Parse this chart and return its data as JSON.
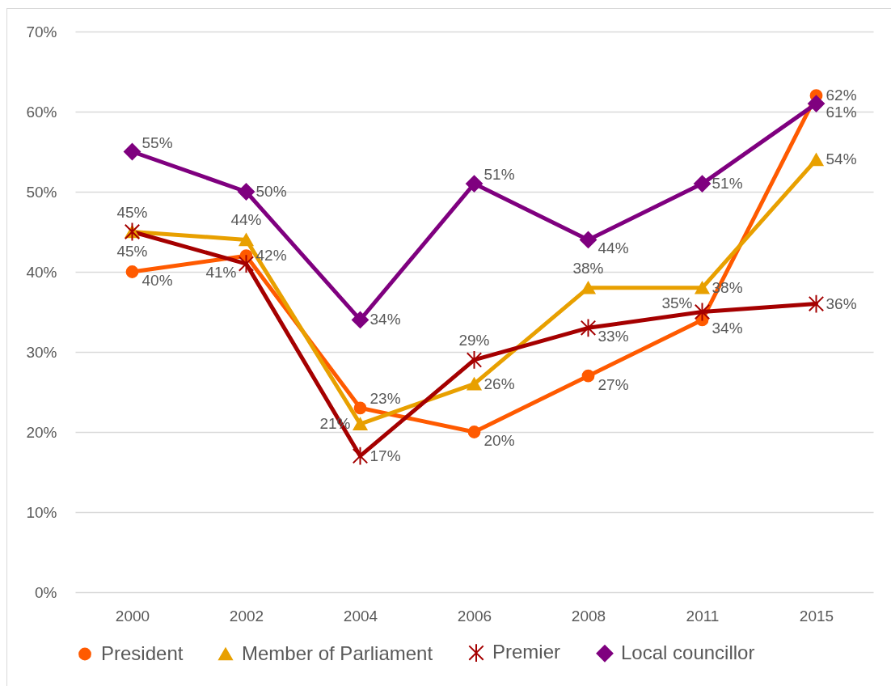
{
  "chart_data": {
    "type": "line",
    "categories": [
      "2000",
      "2002",
      "2004",
      "2006",
      "2008",
      "2011",
      "2015"
    ],
    "series": [
      {
        "name": "President",
        "color": "#ff5a00",
        "marker": "circle",
        "values": [
          40,
          42,
          23,
          20,
          27,
          34,
          62
        ],
        "value_labels": [
          "40%",
          "42%",
          "23%",
          "20%",
          "27%",
          "34%",
          "62%"
        ]
      },
      {
        "name": "Member of Parliament",
        "color": "#e8a000",
        "marker": "triangle",
        "values": [
          45,
          44,
          21,
          26,
          38,
          38,
          54
        ],
        "value_labels": [
          "45%",
          "44%",
          "21%",
          "26%",
          "38%",
          "38%",
          "54%"
        ]
      },
      {
        "name": "Premier",
        "color": "#a50000",
        "marker": "cross",
        "values": [
          45,
          41,
          17,
          29,
          33,
          35,
          36
        ],
        "value_labels": [
          "45%",
          "41%",
          "17%",
          "29%",
          "33%",
          "35%",
          "36%"
        ]
      },
      {
        "name": "Local councillor",
        "color": "#7f007f",
        "marker": "diamond",
        "values": [
          55,
          50,
          34,
          51,
          44,
          51,
          61
        ],
        "value_labels": [
          "55%",
          "50%",
          "34%",
          "51%",
          "44%",
          "51%",
          "61%"
        ]
      }
    ],
    "ylim": [
      0,
      70
    ],
    "yticks": [
      {
        "value": 0,
        "label": "0%"
      },
      {
        "value": 10,
        "label": "10%"
      },
      {
        "value": 20,
        "label": "20%"
      },
      {
        "value": 30,
        "label": "30%"
      },
      {
        "value": 40,
        "label": "40%"
      },
      {
        "value": 50,
        "label": "50%"
      },
      {
        "value": 60,
        "label": "60%"
      },
      {
        "value": 70,
        "label": "70%"
      }
    ],
    "grid": "y",
    "legend": "bottom"
  }
}
